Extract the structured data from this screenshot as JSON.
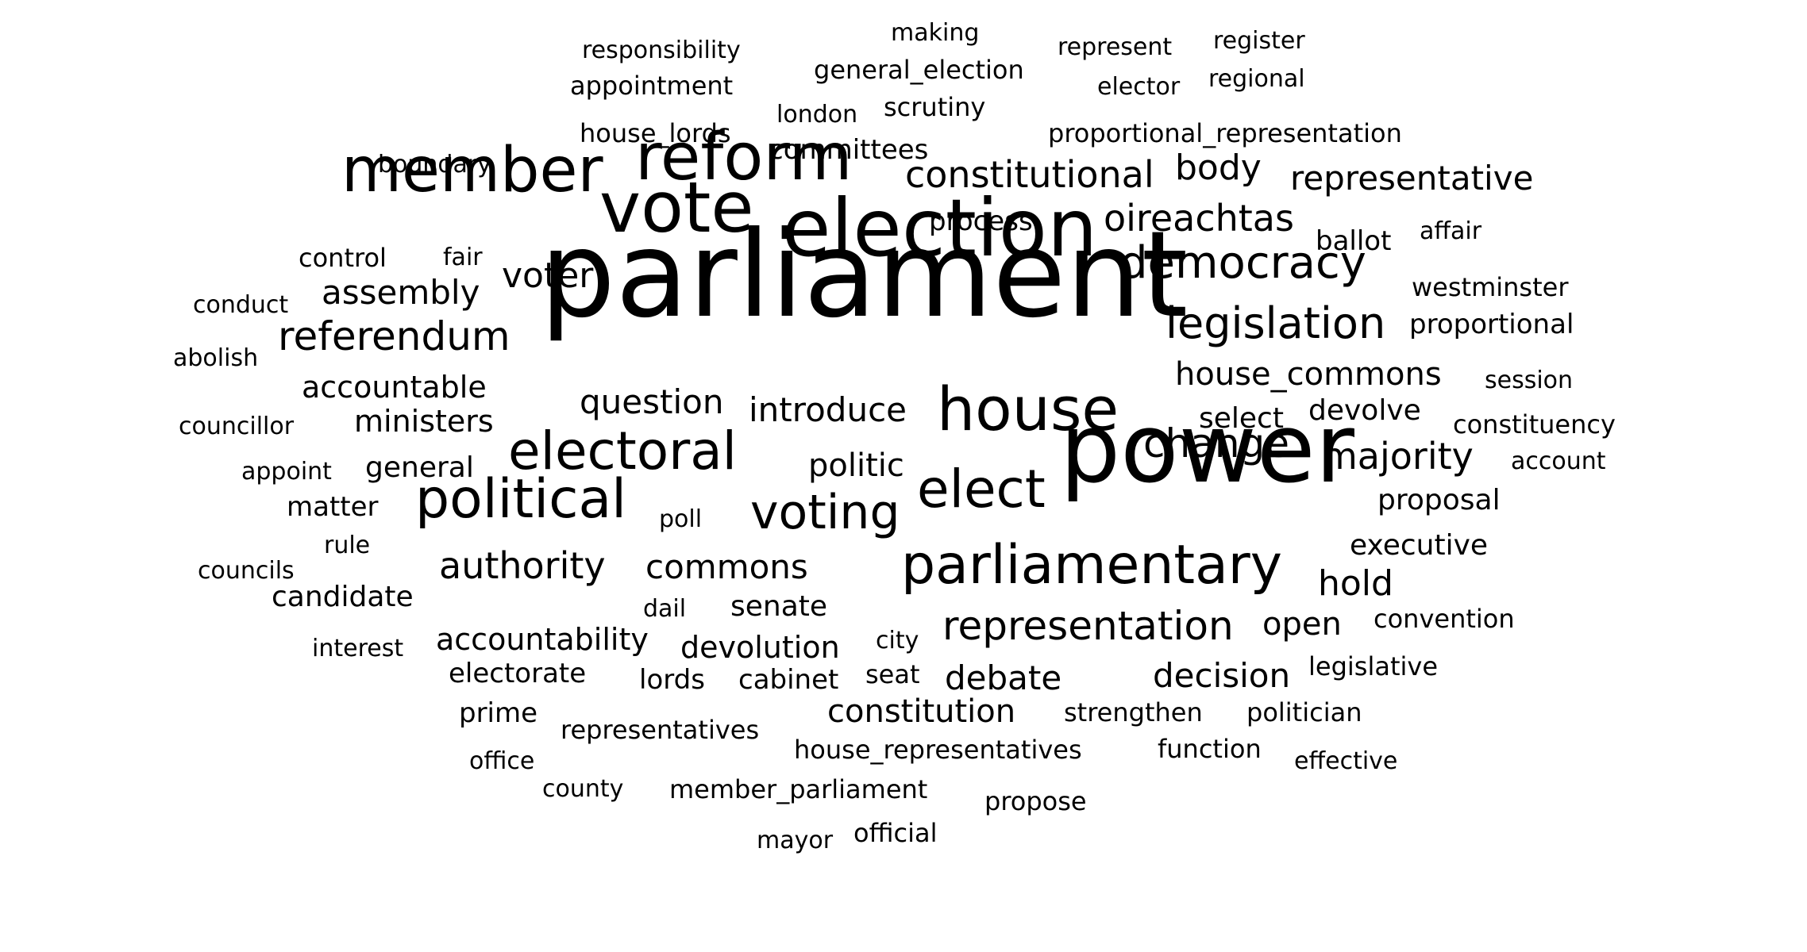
{
  "words": [
    {
      "text": "parliament",
      "size": 150
    },
    {
      "text": "power",
      "size": 120
    },
    {
      "text": "election",
      "size": 100
    },
    {
      "text": "vote",
      "size": 88
    },
    {
      "text": "reform",
      "size": 82
    },
    {
      "text": "member",
      "size": 78
    },
    {
      "text": "house",
      "size": 76
    },
    {
      "text": "parliamentary",
      "size": 68
    },
    {
      "text": "political",
      "size": 68
    },
    {
      "text": "elect",
      "size": 66
    },
    {
      "text": "electoral",
      "size": 66
    },
    {
      "text": "voting",
      "size": 60
    },
    {
      "text": "democracy",
      "size": 56
    },
    {
      "text": "legislation",
      "size": 54
    },
    {
      "text": "representation",
      "size": 50
    },
    {
      "text": "referendum",
      "size": 50
    },
    {
      "text": "change",
      "size": 50
    },
    {
      "text": "constitutional",
      "size": 46
    },
    {
      "text": "oireachtas",
      "size": 46
    },
    {
      "text": "authority",
      "size": 46
    },
    {
      "text": "majority",
      "size": 46
    },
    {
      "text": "body",
      "size": 44
    },
    {
      "text": "voter",
      "size": 44
    },
    {
      "text": "assembly",
      "size": 42
    },
    {
      "text": "introduce",
      "size": 42
    },
    {
      "text": "hold",
      "size": 44
    },
    {
      "text": "representative",
      "size": 42
    },
    {
      "text": "question",
      "size": 42
    },
    {
      "text": "commons",
      "size": 42
    },
    {
      "text": "constitution",
      "size": 40
    },
    {
      "text": "debate",
      "size": 42
    },
    {
      "text": "decision",
      "size": 42
    },
    {
      "text": "house_commons",
      "size": 40
    },
    {
      "text": "accountability",
      "size": 38
    },
    {
      "text": "accountable",
      "size": 38
    },
    {
      "text": "ministers",
      "size": 38
    },
    {
      "text": "politic",
      "size": 40
    },
    {
      "text": "devolution",
      "size": 38
    },
    {
      "text": "open",
      "size": 40
    },
    {
      "text": "general",
      "size": 36
    },
    {
      "text": "candidate",
      "size": 36
    },
    {
      "text": "senate",
      "size": 36
    },
    {
      "text": "select",
      "size": 36
    },
    {
      "text": "devolve",
      "size": 36
    },
    {
      "text": "executive",
      "size": 36
    },
    {
      "text": "proposal",
      "size": 36
    },
    {
      "text": "proportional",
      "size": 34
    },
    {
      "text": "westminster",
      "size": 32
    },
    {
      "text": "ballot",
      "size": 34
    },
    {
      "text": "matter",
      "size": 34
    },
    {
      "text": "electorate",
      "size": 34
    },
    {
      "text": "lords",
      "size": 34
    },
    {
      "text": "cabinet",
      "size": 34
    },
    {
      "text": "process",
      "size": 34
    },
    {
      "text": "committees",
      "size": 34
    },
    {
      "text": "appointment",
      "size": 32
    },
    {
      "text": "house_lords",
      "size": 32
    },
    {
      "text": "scrutiny",
      "size": 32
    },
    {
      "text": "constituency",
      "size": 32
    },
    {
      "text": "general_election",
      "size": 32
    },
    {
      "text": "proportional_representation",
      "size": 32
    },
    {
      "text": "representatives",
      "size": 32
    },
    {
      "text": "house_representatives",
      "size": 32
    },
    {
      "text": "member_parliament",
      "size": 32
    },
    {
      "text": "prime",
      "size": 34
    },
    {
      "text": "strengthen",
      "size": 32
    },
    {
      "text": "politician",
      "size": 32
    },
    {
      "text": "function",
      "size": 32
    },
    {
      "text": "legislative",
      "size": 32
    },
    {
      "text": "convention",
      "size": 32
    },
    {
      "text": "control",
      "size": 32
    },
    {
      "text": "conduct",
      "size": 30
    },
    {
      "text": "councillor",
      "size": 30
    },
    {
      "text": "appoint",
      "size": 30
    },
    {
      "text": "rule",
      "size": 30
    },
    {
      "text": "councils",
      "size": 30
    },
    {
      "text": "interest",
      "size": 30
    },
    {
      "text": "responsibility",
      "size": 30
    },
    {
      "text": "london",
      "size": 30
    },
    {
      "text": "boundary",
      "size": 30
    },
    {
      "text": "fair",
      "size": 30
    },
    {
      "text": "abolish",
      "size": 30
    },
    {
      "text": "poll",
      "size": 30
    },
    {
      "text": "dail",
      "size": 30
    },
    {
      "text": "city",
      "size": 30
    },
    {
      "text": "seat",
      "size": 32
    },
    {
      "text": "office",
      "size": 30
    },
    {
      "text": "county",
      "size": 30
    },
    {
      "text": "propose",
      "size": 32
    },
    {
      "text": "official",
      "size": 32
    },
    {
      "text": "mayor",
      "size": 30
    },
    {
      "text": "effective",
      "size": 30
    },
    {
      "text": "session",
      "size": 30
    },
    {
      "text": "account",
      "size": 30
    },
    {
      "text": "affair",
      "size": 30
    },
    {
      "text": "elector",
      "size": 30
    },
    {
      "text": "regional",
      "size": 30
    },
    {
      "text": "register",
      "size": 30
    },
    {
      "text": "represent",
      "size": 30
    },
    {
      "text": "making",
      "size": 30
    }
  ]
}
